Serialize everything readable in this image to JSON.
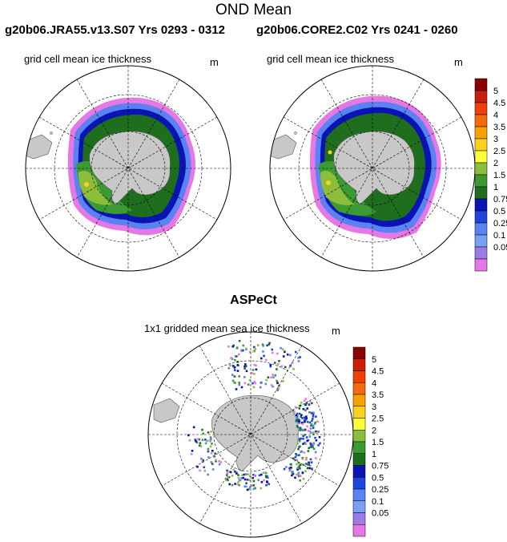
{
  "header": {
    "title": "OND Mean",
    "run_left": "g20b06.JRA55.v13.S07  Yrs 0293 - 0312",
    "run_right": "g20b06.CORE2.C02  Yrs 0241 - 0260",
    "obs_title": "ASPeCt"
  },
  "panels": [
    {
      "id": "left",
      "subtitle": "grid cell mean ice thickness",
      "unit": "m"
    },
    {
      "id": "right",
      "subtitle": "grid cell mean ice thickness",
      "unit": "m"
    },
    {
      "id": "bottom",
      "subtitle": "1x1 gridded mean sea ice thickness",
      "unit": "m"
    }
  ],
  "colorbar": {
    "labels": [
      "5",
      "4.5",
      "4",
      "3.5",
      "3",
      "2.5",
      "2",
      "1.5",
      "1",
      "0.75",
      "0.5",
      "0.25",
      "0.1",
      "0.05"
    ],
    "colors": [
      "#8b0000",
      "#c81e0a",
      "#f0400a",
      "#f56a0a",
      "#f7a000",
      "#fad21e",
      "#ffff3c",
      "#8cbe3c",
      "#3c9a32",
      "#1e6e1e",
      "#0a14b4",
      "#1e46dc",
      "#5a82f0",
      "#78a0f5",
      "#a07ae6",
      "#e678e6"
    ],
    "colors_note": "colors ordered top to bottom"
  }
}
